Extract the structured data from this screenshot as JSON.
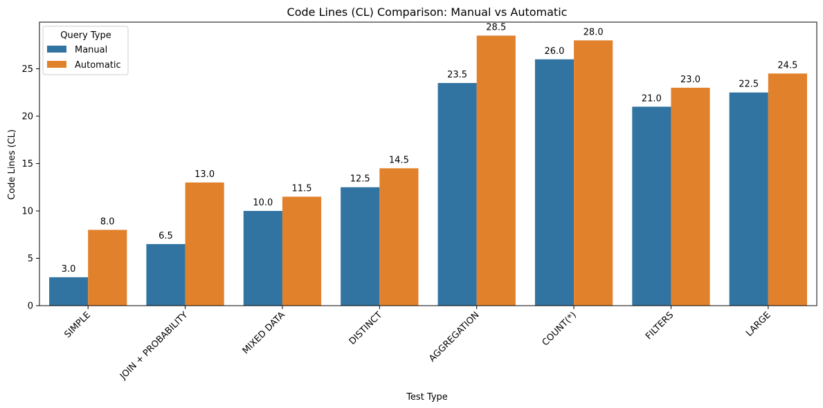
{
  "chart_data": {
    "type": "bar",
    "title": "Code Lines (CL) Comparison: Manual vs Automatic",
    "xlabel": "Test Type",
    "ylabel": "Code Lines (CL)",
    "ylim": [
      0,
      29.925
    ],
    "yticks": [
      0,
      5,
      10,
      15,
      20,
      25
    ],
    "categories": [
      "SIMPLE",
      "JOIN + PROBABILITY",
      "MIXED DATA",
      "DISTINCT",
      "AGGREGATION",
      "COUNT(*)",
      "FILTERS",
      "LARGE"
    ],
    "series": [
      {
        "name": "Manual",
        "color": "#3274a1",
        "values": [
          3.0,
          6.5,
          10.0,
          12.5,
          23.5,
          26.0,
          21.0,
          22.5
        ]
      },
      {
        "name": "Automatic",
        "color": "#e1812c",
        "values": [
          8.0,
          13.0,
          11.5,
          14.5,
          28.5,
          28.0,
          23.0,
          24.5
        ]
      }
    ],
    "legend": {
      "title": "Query Type",
      "position": "top-left"
    },
    "grid": false
  }
}
